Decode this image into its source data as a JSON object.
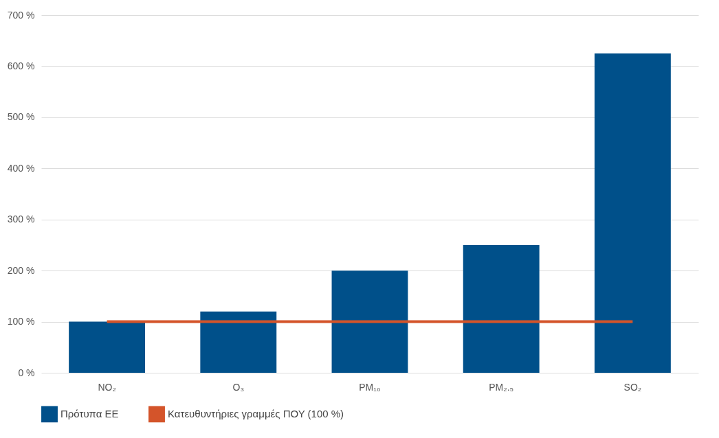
{
  "chart_data": {
    "type": "bar",
    "categories": [
      "NO₂",
      "O₃",
      "PM₁₀",
      "PM₂.₅",
      "SO₂"
    ],
    "series": [
      {
        "name": "Πρότυπα ΕΕ",
        "color": "#00508a",
        "values": [
          100,
          120,
          200,
          250,
          625
        ]
      },
      {
        "name": "Κατευθυντήριες γραμμές ΠΟΥ (100 %)",
        "type": "line",
        "color": "#d4542a",
        "values": [
          100,
          100,
          100,
          100,
          100
        ]
      }
    ],
    "ylim": [
      0,
      700
    ],
    "yticks": [
      {
        "value": 0,
        "label": "0 %"
      },
      {
        "value": 100,
        "label": "100 %"
      },
      {
        "value": 200,
        "label": "200 %"
      },
      {
        "value": 300,
        "label": "300 %"
      },
      {
        "value": 400,
        "label": "400 %"
      },
      {
        "value": 500,
        "label": "500 %"
      },
      {
        "value": 600,
        "label": "600 %"
      },
      {
        "value": 700,
        "label": "700 %"
      }
    ],
    "grid": "y",
    "legend": "bottom"
  }
}
